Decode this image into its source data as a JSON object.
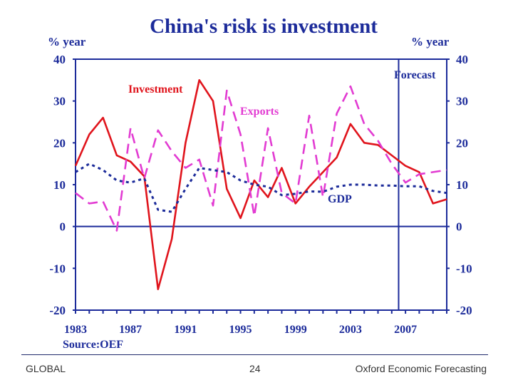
{
  "chart_data": {
    "type": "line",
    "title": "China's risk is investment",
    "ylabel_left": "% year",
    "ylabel_right": "% year",
    "y_ticks": [
      -20,
      -10,
      0,
      10,
      20,
      30,
      40
    ],
    "ylim": [
      -20,
      40
    ],
    "xlim": [
      1983,
      2010
    ],
    "x_tick_labels": [
      "1983",
      "1987",
      "1991",
      "1995",
      "1999",
      "2003",
      "2007"
    ],
    "x_ticks": [
      1983,
      1987,
      1991,
      1995,
      1999,
      2003,
      2007
    ],
    "source": "Source:OEF",
    "forecast_label": "Forecast",
    "forecast_start": 2006.5,
    "series": [
      {
        "name": "Investment",
        "style": "solid",
        "color": "#e0141c",
        "x": [
          1983,
          1984,
          1985,
          1986,
          1987,
          1988,
          1989,
          1990,
          1991,
          1992,
          1993,
          1994,
          1995,
          1996,
          1997,
          1998,
          1999,
          2000,
          2001,
          2002,
          2003,
          2004,
          2005,
          2006,
          2007,
          2008,
          2009,
          2010
        ],
        "values": [
          14.5,
          22,
          26,
          17,
          15.5,
          12,
          -15,
          -3,
          20,
          35,
          30,
          9,
          2,
          11,
          7,
          14,
          5.5,
          9.5,
          13,
          16.5,
          24.5,
          20,
          19.5,
          17,
          14.5,
          13,
          5.5,
          6.5
        ]
      },
      {
        "name": "Exports",
        "style": "dashed",
        "color": "#e23bd2",
        "x": [
          1983,
          1984,
          1985,
          1986,
          1987,
          1988,
          1989,
          1990,
          1991,
          1992,
          1993,
          1994,
          1995,
          1996,
          1997,
          1998,
          1999,
          2000,
          2001,
          2002,
          2003,
          2004,
          2005,
          2006,
          2007,
          2008,
          2009,
          2010
        ],
        "values": [
          8,
          5.5,
          6,
          -1,
          23.5,
          11.5,
          23,
          18,
          14,
          16,
          5,
          32.5,
          22,
          2.5,
          23.5,
          8,
          5.5,
          26.5,
          7,
          27,
          33.5,
          24.5,
          20.5,
          15,
          10.5,
          12.5,
          13,
          13.5
        ]
      },
      {
        "name": "GDP",
        "style": "dotted",
        "color": "#1c2b9a",
        "x": [
          1983,
          1984,
          1985,
          1986,
          1987,
          1988,
          1989,
          1990,
          1991,
          1992,
          1993,
          1994,
          1995,
          1996,
          1997,
          1998,
          1999,
          2000,
          2001,
          2002,
          2003,
          2004,
          2005,
          2006,
          2007,
          2008,
          2009,
          2010
        ],
        "values": [
          13,
          15,
          13.5,
          11,
          10.5,
          11.5,
          4,
          3.5,
          9,
          14,
          13.5,
          13,
          11,
          10,
          9.5,
          7.5,
          7.8,
          8.4,
          8.3,
          9.5,
          10,
          10,
          9.8,
          9.8,
          9.6,
          9.6,
          8.5,
          8
        ]
      }
    ],
    "annotations": [
      {
        "text": "Investment",
        "color": "#e0141c"
      },
      {
        "text": "Exports",
        "color": "#e23bd2"
      },
      {
        "text": "GDP",
        "color": "#1c2b9a"
      }
    ]
  },
  "footer": {
    "left": "GLOBAL",
    "center": "24",
    "right": "Oxford Economic Forecasting"
  }
}
